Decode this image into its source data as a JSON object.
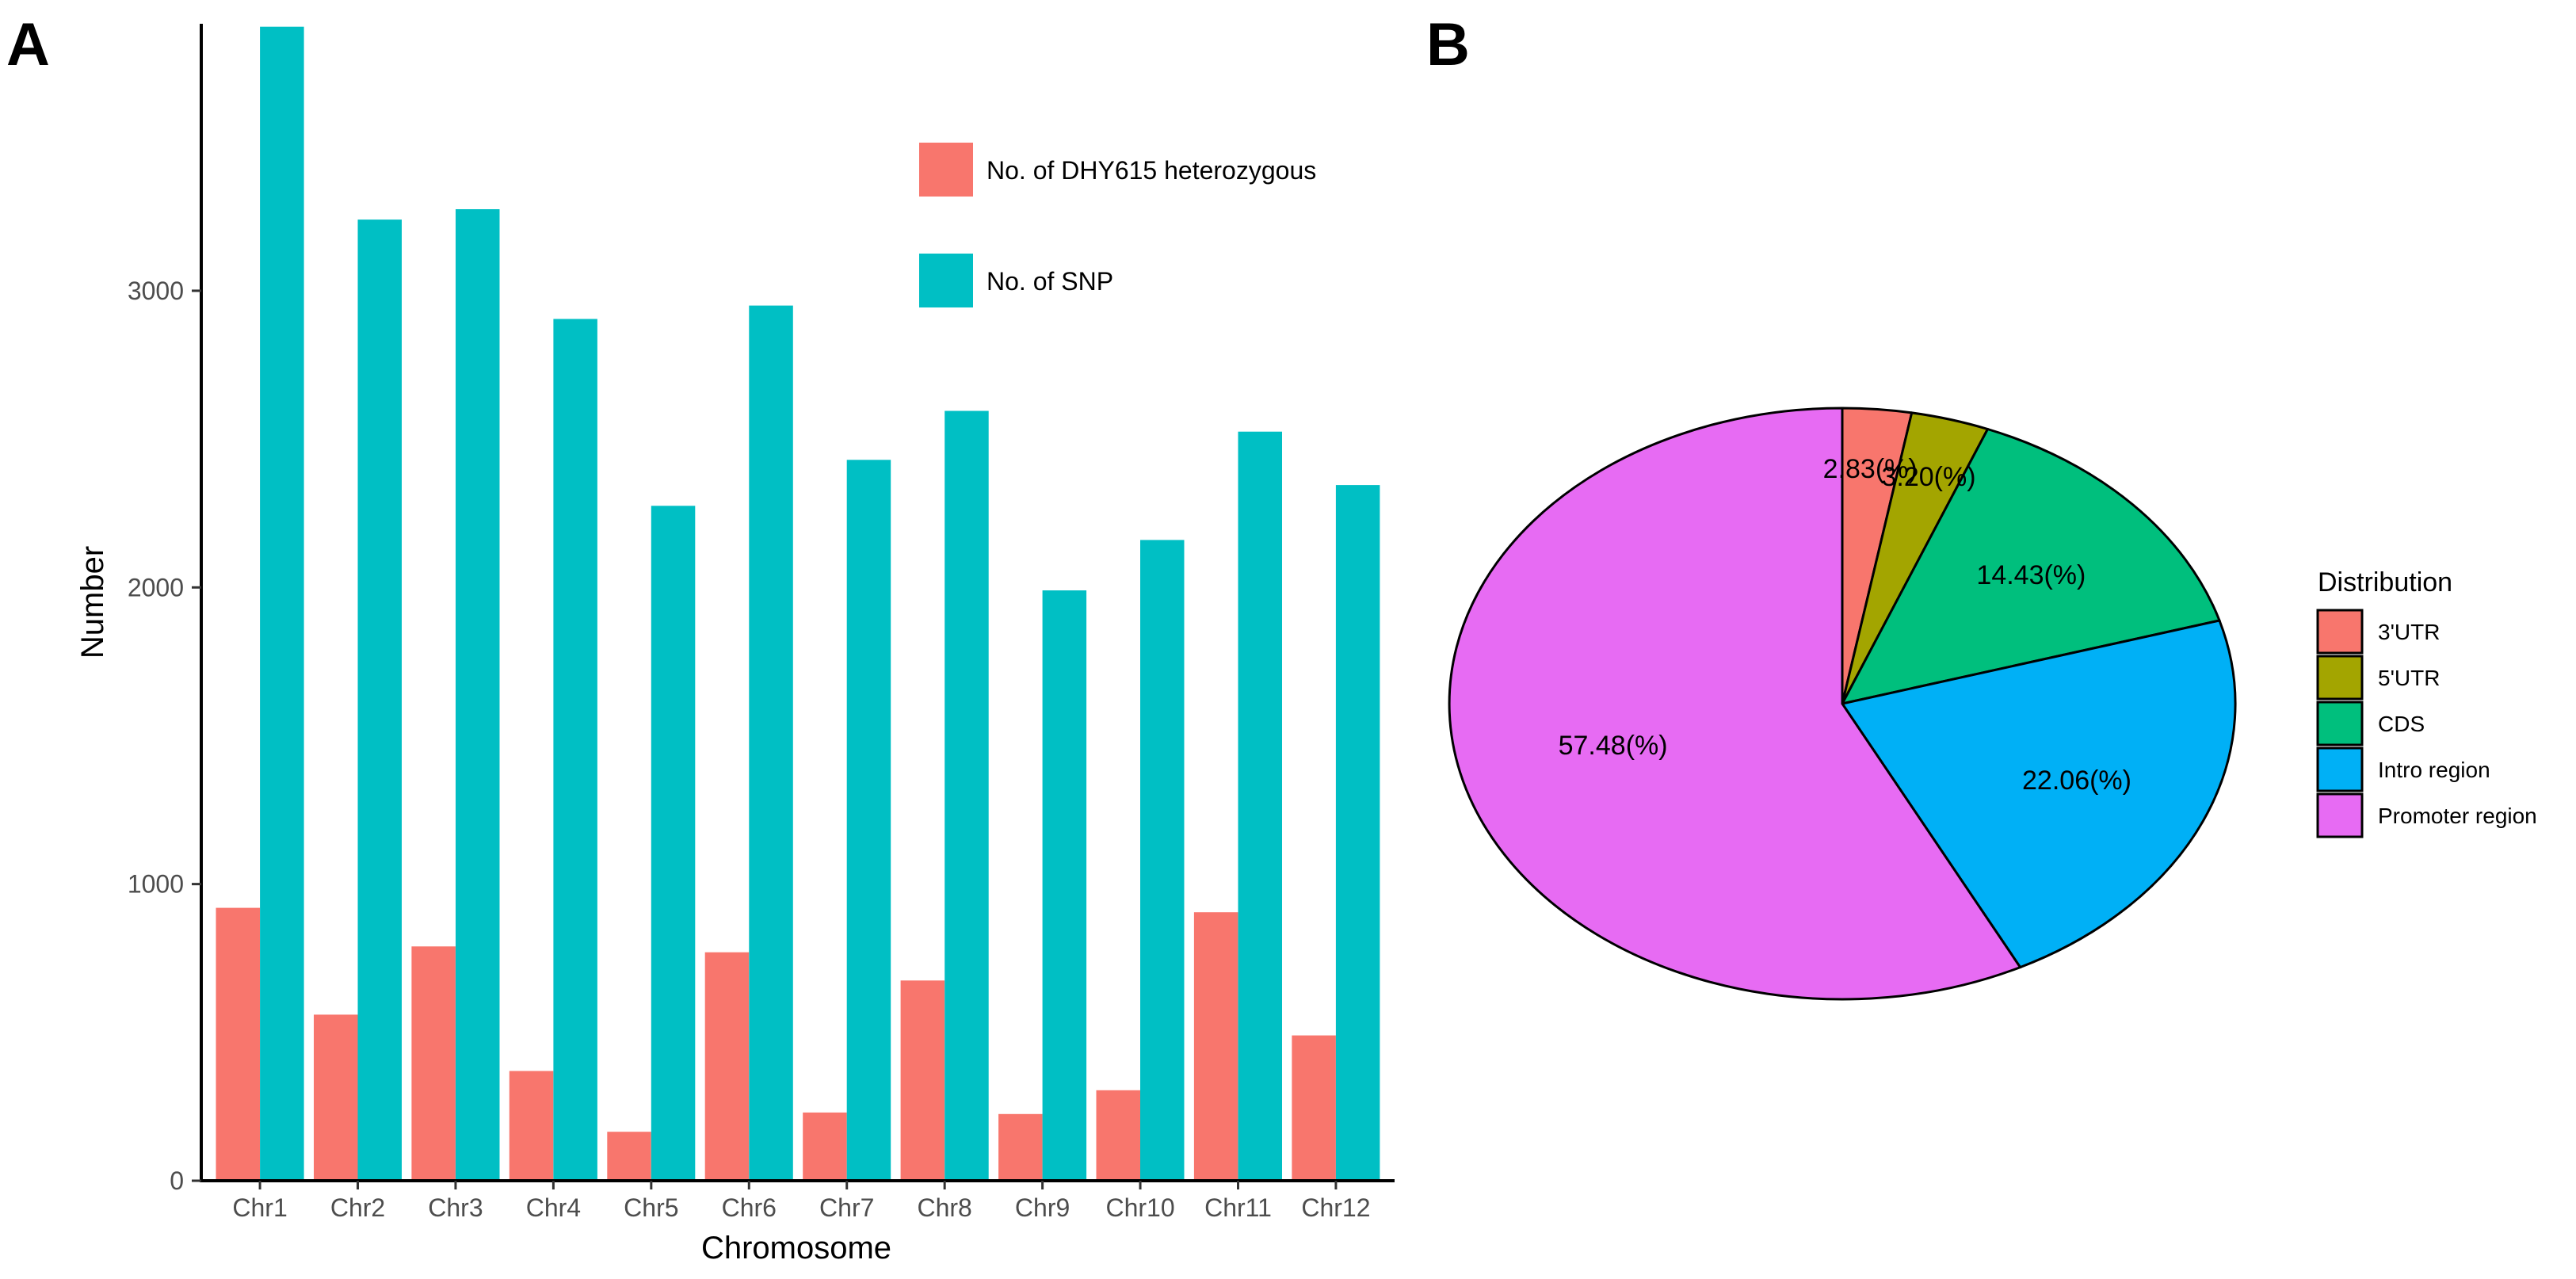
{
  "chart_data": [
    {
      "type": "bar",
      "panel": "A",
      "title": "",
      "xlabel": "Chromosome",
      "ylabel": "Number",
      "ylim": [
        0,
        3900
      ],
      "yticks": [
        0,
        1000,
        2000,
        3000
      ],
      "categories": [
        "Chr1",
        "Chr2",
        "Chr3",
        "Chr4",
        "Chr5",
        "Chr6",
        "Chr7",
        "Chr8",
        "Chr9",
        "Chr10",
        "Chr11",
        "Chr12"
      ],
      "series": [
        {
          "name": "No. of DHY615 heterozygous",
          "color": "#F8766D",
          "values": [
            920,
            560,
            790,
            370,
            165,
            770,
            230,
            675,
            225,
            305,
            905,
            490
          ]
        },
        {
          "name": "No. of SNP",
          "color": "#00BFC4",
          "values": [
            3890,
            3240,
            3275,
            2905,
            2275,
            2950,
            2430,
            2595,
            1990,
            2160,
            2525,
            2345
          ]
        }
      ],
      "legend": "top-right",
      "grid": false
    },
    {
      "type": "pie",
      "panel": "B",
      "legend_title": "Distribution",
      "slices": [
        {
          "name": "3'UTR",
          "value": 2.83,
          "label": "2.83(%)",
          "color": "#F8766D"
        },
        {
          "name": "5'UTR",
          "value": 3.2,
          "label": "3.20(%)",
          "color": "#A3A500"
        },
        {
          "name": "CDS",
          "value": 14.43,
          "label": "14.43(%)",
          "color": "#00BF7D"
        },
        {
          "name": "Intro region",
          "value": 22.06,
          "label": "22.06(%)",
          "color": "#00B0F6"
        },
        {
          "name": "Promoter region",
          "value": 57.48,
          "label": "57.48(%)",
          "color": "#E76BF3"
        }
      ],
      "legend": "right"
    }
  ]
}
